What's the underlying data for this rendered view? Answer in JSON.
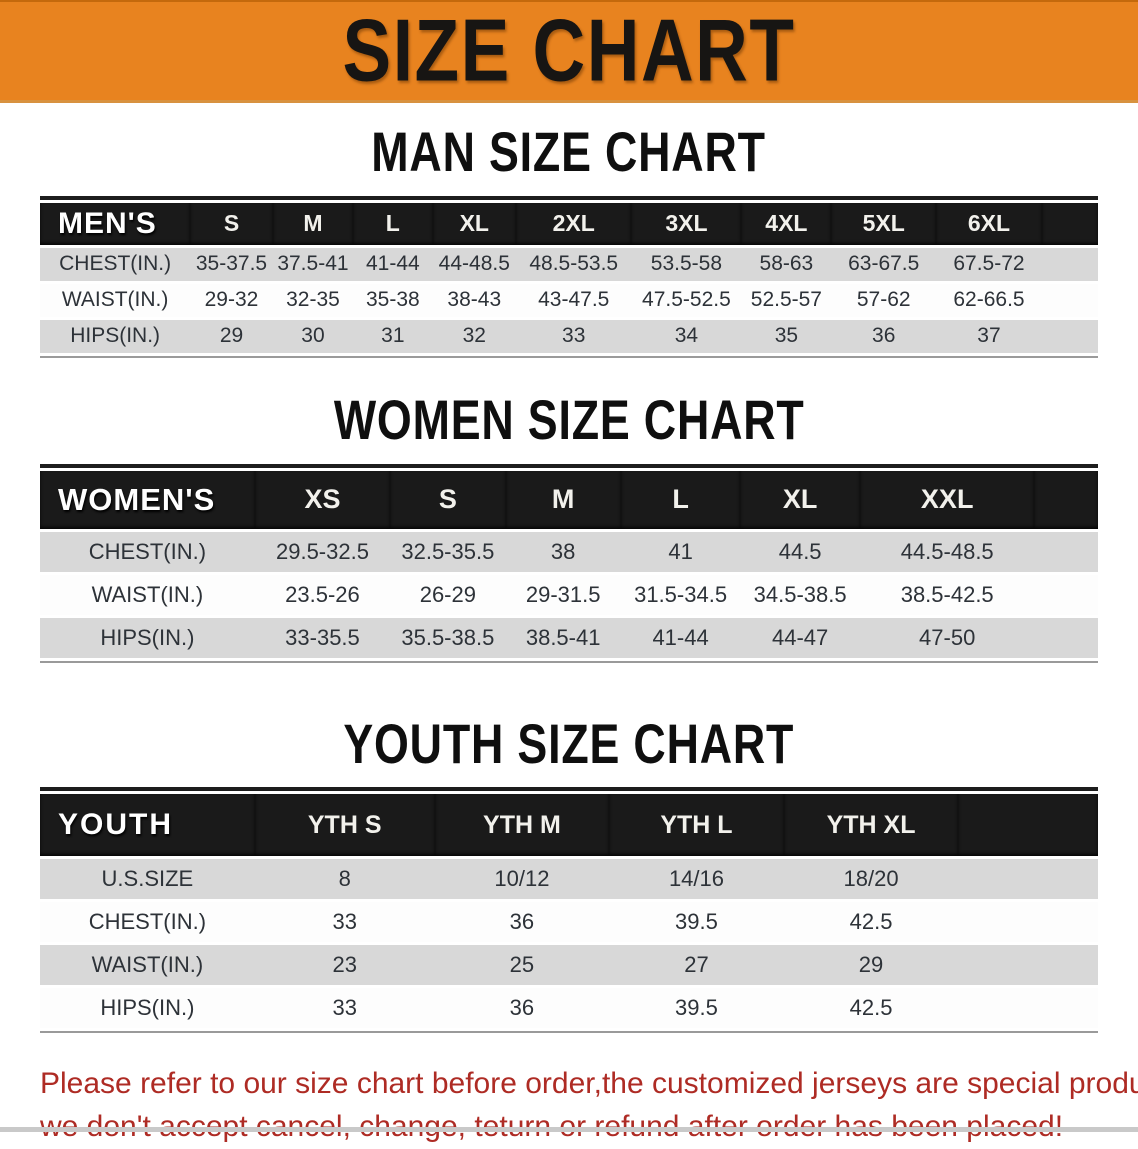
{
  "banner": {
    "title": "SIZE CHART",
    "bg_color": "#E8831F",
    "text_color": "#171513"
  },
  "sections": [
    {
      "heading": "MAN SIZE CHART",
      "table": {
        "corner_label": "MEN'S",
        "columns": [
          "S",
          "M",
          "L",
          "XL",
          "2XL",
          "3XL",
          "4XL",
          "5XL",
          "6XL"
        ],
        "rows": [
          {
            "label": "CHEST(IN.)",
            "values": [
              "35-37.5",
              "37.5-41",
              "41-44",
              "44-48.5",
              "48.5-53.5",
              "53.5-58",
              "58-63",
              "63-67.5",
              "67.5-72"
            ]
          },
          {
            "label": "WAIST(IN.)",
            "values": [
              "29-32",
              "32-35",
              "35-38",
              "38-43",
              "43-47.5",
              "47.5-52.5",
              "52.5-57",
              "57-62",
              "62-66.5"
            ]
          },
          {
            "label": "HIPS(IN.)",
            "values": [
              "29",
              "30",
              "31",
              "32",
              "33",
              "34",
              "35",
              "36",
              "37"
            ]
          }
        ]
      }
    },
    {
      "heading": "WOMEN SIZE CHART",
      "table": {
        "corner_label": "WOMEN'S",
        "columns": [
          "XS",
          "S",
          "M",
          "L",
          "XL",
          "XXL"
        ],
        "rows": [
          {
            "label": "CHEST(IN.)",
            "values": [
              "29.5-32.5",
              "32.5-35.5",
              "38",
              "41",
              "44.5",
              "44.5-48.5"
            ]
          },
          {
            "label": "WAIST(IN.)",
            "values": [
              "23.5-26",
              "26-29",
              "29-31.5",
              "31.5-34.5",
              "34.5-38.5",
              "38.5-42.5"
            ]
          },
          {
            "label": "HIPS(IN.)",
            "values": [
              "33-35.5",
              "35.5-38.5",
              "38.5-41",
              "41-44",
              "44-47",
              "47-50"
            ]
          }
        ]
      }
    },
    {
      "heading": "YOUTH SIZE CHART",
      "table": {
        "corner_label": "YOUTH",
        "columns": [
          "YTH S",
          "YTH M",
          "YTH L",
          "YTH XL"
        ],
        "rows": [
          {
            "label": "U.S.SIZE",
            "values": [
              "8",
              "10/12",
              "14/16",
              "18/20"
            ]
          },
          {
            "label": "CHEST(IN.)",
            "values": [
              "33",
              "36",
              "39.5",
              "42.5"
            ]
          },
          {
            "label": "WAIST(IN.)",
            "values": [
              "23",
              "25",
              "27",
              "29"
            ]
          },
          {
            "label": "HIPS(IN.)",
            "values": [
              "33",
              "36",
              "39.5",
              "42.5"
            ]
          }
        ]
      }
    }
  ],
  "disclaimer": {
    "color": "#AE2B24",
    "lines": [
      "Please refer to our size chart before order,the customized jerseys are special products,",
      "we don't accept cancel, change, teturn or refund after order has been placed!"
    ]
  }
}
